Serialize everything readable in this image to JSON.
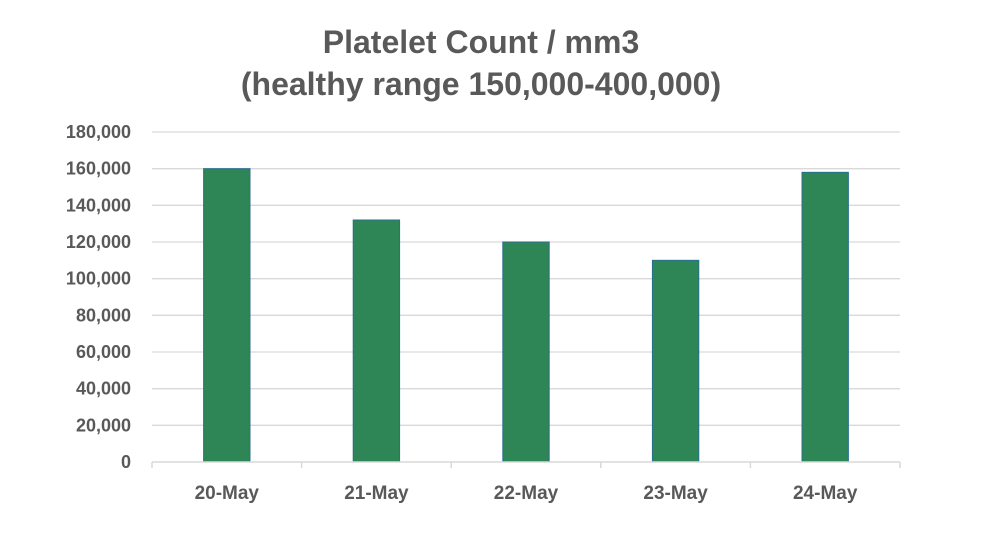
{
  "chart_data": {
    "type": "bar",
    "title": "Platelet Count / mm3",
    "subtitle": "(healthy range 150,000-400,000)",
    "xlabel": "",
    "ylabel": "",
    "categories": [
      "20-May",
      "21-May",
      "22-May",
      "23-May",
      "24-May"
    ],
    "series": [
      {
        "values": [
          160000,
          132000,
          120000,
          110000,
          158000
        ]
      }
    ],
    "ylim": [
      0,
      180000
    ],
    "y_ticks": [
      0,
      20000,
      40000,
      60000,
      80000,
      100000,
      120000,
      140000,
      160000,
      180000
    ],
    "y_tick_labels": [
      "0",
      "20,000",
      "40,000",
      "60,000",
      "80,000",
      "100,000",
      "120,000",
      "140,000",
      "160,000",
      "180,000"
    ],
    "grid": true,
    "legend": "none",
    "colors": {
      "bar": "#2e8555",
      "bar_edge": "#2a6f8f",
      "grid": "#d9d9d9",
      "text": "#595959",
      "axis": "#d9d9d9"
    }
  }
}
